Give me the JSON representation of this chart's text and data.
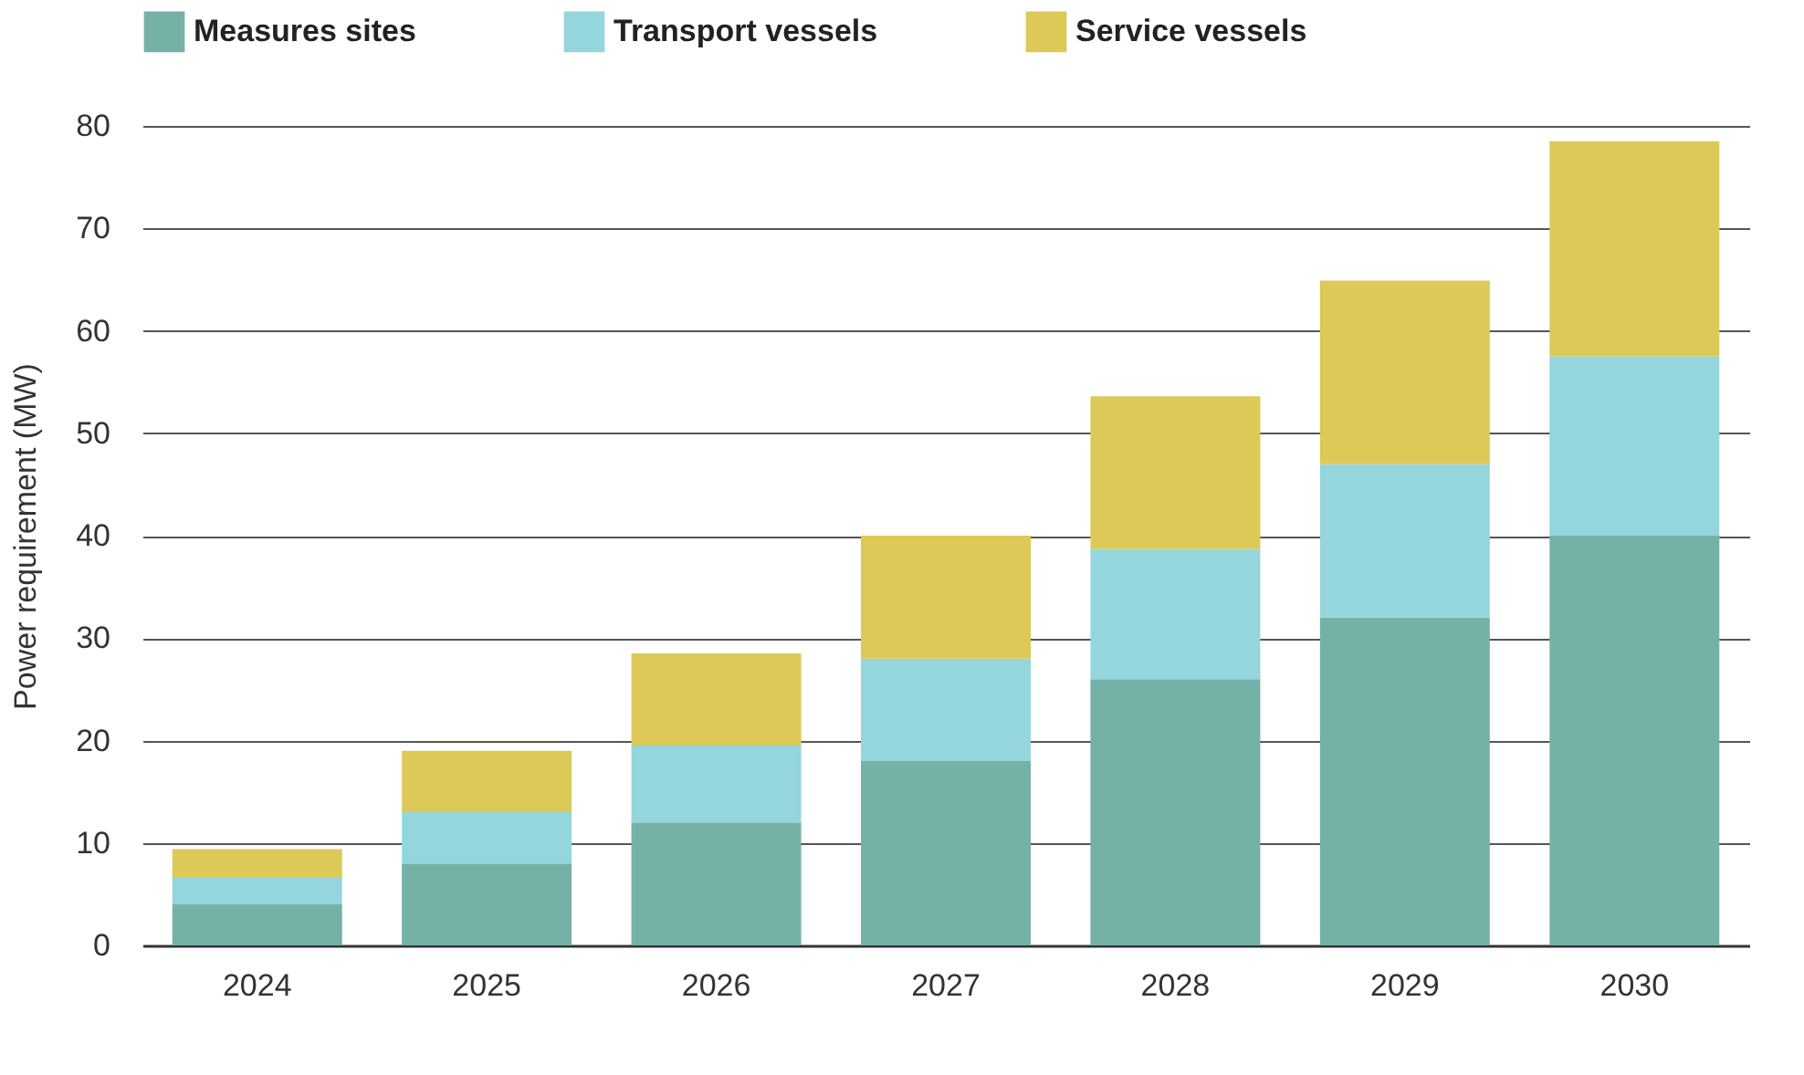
{
  "chart_data": {
    "type": "bar",
    "stacked": true,
    "ylabel": "Power requirement (MW)",
    "categories": [
      "2024",
      "2025",
      "2026",
      "2027",
      "2028",
      "2029",
      "2030"
    ],
    "series": [
      {
        "name": "Measures sites",
        "color": "#76b1a8",
        "values": [
          4,
          8,
          12,
          18,
          26,
          32,
          40
        ]
      },
      {
        "name": "Transport vessels",
        "color": "#95d5dc",
        "values": [
          2.6,
          5,
          7.5,
          10,
          12.7,
          15,
          17.5
        ]
      },
      {
        "name": "Service vessels",
        "color": "#dcc957",
        "values": [
          2.8,
          6,
          9,
          12,
          14.9,
          17.9,
          21
        ]
      }
    ],
    "ylim": [
      0,
      80
    ],
    "yticks": [
      0,
      10,
      20,
      30,
      40,
      50,
      60,
      70,
      80
    ],
    "grid": "y",
    "legend": "top left"
  }
}
